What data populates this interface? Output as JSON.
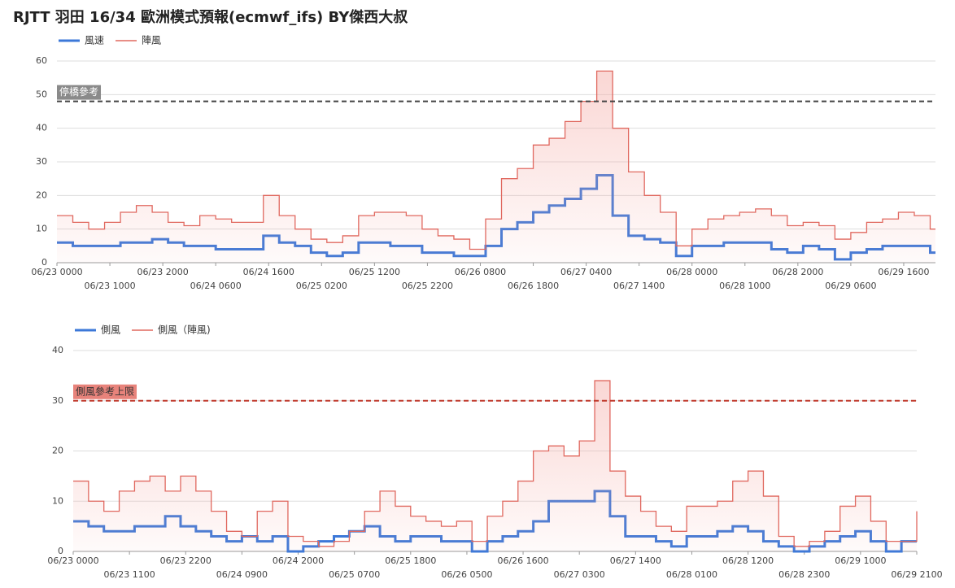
{
  "chart_data": [
    {
      "type": "step",
      "title": "RJTT 羽田 16/34 歐洲模式預報(ecmwf_ifs)  BY傑西大叔",
      "x": [
        "06/23 0000",
        "06/23 0300",
        "06/23 0600",
        "06/23 0900",
        "06/23 1200",
        "06/23 1500",
        "06/23 1800",
        "06/23 2100",
        "06/24 0000",
        "06/24 0300",
        "06/24 0600",
        "06/24 0900",
        "06/24 1200",
        "06/24 1500",
        "06/24 1800",
        "06/24 2100",
        "06/25 0000",
        "06/25 0300",
        "06/25 0600",
        "06/25 0900",
        "06/25 1200",
        "06/25 1500",
        "06/25 1800",
        "06/25 2100",
        "06/26 0000",
        "06/26 0300",
        "06/26 0600",
        "06/26 0900",
        "06/26 1200",
        "06/26 1500",
        "06/26 1800",
        "06/26 2100",
        "06/27 0000",
        "06/27 0300",
        "06/27 0600",
        "06/27 0900",
        "06/27 1200",
        "06/27 1500",
        "06/27 1800",
        "06/27 2100",
        "06/28 0000",
        "06/28 0300",
        "06/28 0600",
        "06/28 0900",
        "06/28 1200",
        "06/28 1500",
        "06/28 1800",
        "06/28 2100",
        "06/29 0000",
        "06/29 0300",
        "06/29 0600",
        "06/29 0900",
        "06/29 1200",
        "06/29 1500",
        "06/29 1800",
        "06/29 2100"
      ],
      "xlim": [
        "06/23 0000",
        "06/29 2200"
      ],
      "xticks": [
        "06/23 0000",
        "06/23 1000",
        "06/23 2000",
        "06/24 0600",
        "06/24 1600",
        "06/25 0200",
        "06/25 1200",
        "06/25 2200",
        "06/26 0800",
        "06/26 1800",
        "06/27 0400",
        "06/27 1400",
        "06/28 0000",
        "06/28 1000",
        "06/28 2000",
        "06/29 0600",
        "06/29 1600"
      ],
      "ylim": [
        0,
        60
      ],
      "yticks": [
        0,
        10,
        20,
        30,
        40,
        50,
        60
      ],
      "grid": true,
      "annotations": [
        {
          "text": "停橋參考",
          "value": 48,
          "color": "#444444"
        }
      ],
      "series": [
        {
          "name": "風速",
          "color": "#3c78d8",
          "values": [
            6,
            5,
            5,
            5,
            6,
            6,
            7,
            6,
            5,
            5,
            4,
            4,
            4,
            8,
            6,
            5,
            3,
            2,
            3,
            6,
            6,
            5,
            5,
            3,
            3,
            2,
            2,
            5,
            10,
            12,
            15,
            17,
            19,
            22,
            26,
            14,
            8,
            7,
            6,
            2,
            5,
            5,
            6,
            6,
            6,
            4,
            3,
            5,
            4,
            1,
            3,
            4,
            5,
            5,
            5,
            3
          ]
        },
        {
          "name": "陣風",
          "color": "#e0685f",
          "values": [
            14,
            12,
            10,
            12,
            15,
            17,
            15,
            12,
            11,
            14,
            13,
            12,
            12,
            20,
            14,
            10,
            7,
            6,
            8,
            14,
            15,
            15,
            14,
            10,
            8,
            7,
            4,
            13,
            25,
            28,
            35,
            37,
            42,
            48,
            57,
            40,
            27,
            20,
            15,
            5,
            10,
            13,
            14,
            15,
            16,
            14,
            11,
            12,
            11,
            7,
            9,
            12,
            13,
            15,
            14,
            10
          ]
        }
      ]
    },
    {
      "type": "step",
      "x": [
        "06/23 0000",
        "06/23 0300",
        "06/23 0600",
        "06/23 0900",
        "06/23 1200",
        "06/23 1500",
        "06/23 1800",
        "06/23 2100",
        "06/24 0000",
        "06/24 0300",
        "06/24 0600",
        "06/24 0900",
        "06/24 1200",
        "06/24 1500",
        "06/24 1800",
        "06/24 2100",
        "06/25 0000",
        "06/25 0300",
        "06/25 0600",
        "06/25 0900",
        "06/25 1200",
        "06/25 1500",
        "06/25 1800",
        "06/25 2100",
        "06/26 0000",
        "06/26 0300",
        "06/26 0600",
        "06/26 0900",
        "06/26 1200",
        "06/26 1500",
        "06/26 1800",
        "06/26 2100",
        "06/27 0000",
        "06/27 0300",
        "06/27 0600",
        "06/27 0900",
        "06/27 1200",
        "06/27 1500",
        "06/27 1800",
        "06/27 2100",
        "06/28 0000",
        "06/28 0300",
        "06/28 0600",
        "06/28 0900",
        "06/28 1200",
        "06/28 1500",
        "06/28 1800",
        "06/28 2100",
        "06/29 0000",
        "06/29 0300",
        "06/29 0600",
        "06/29 0900",
        "06/29 1200",
        "06/29 1500",
        "06/29 1800",
        "06/29 2100"
      ],
      "xlim": [
        "06/23 0000",
        "06/29 2100"
      ],
      "xticks": [
        "06/23 0000",
        "06/23 1100",
        "06/23 2200",
        "06/24 0900",
        "06/24 2000",
        "06/25 0700",
        "06/25 1800",
        "06/26 0500",
        "06/26 1600",
        "06/27 0300",
        "06/27 1400",
        "06/28 0100",
        "06/28 1200",
        "06/28 2300",
        "06/29 1000",
        "06/29 2100"
      ],
      "ylim": [
        0,
        40
      ],
      "yticks": [
        0,
        10,
        20,
        30,
        40
      ],
      "grid": true,
      "annotations": [
        {
          "text": "側風參考上限",
          "value": 30,
          "color": "#c0392b"
        }
      ],
      "series": [
        {
          "name": "側風",
          "color": "#3c78d8",
          "values": [
            6,
            5,
            4,
            4,
            5,
            5,
            7,
            5,
            4,
            3,
            2,
            3,
            2,
            3,
            0,
            1,
            2,
            3,
            4,
            5,
            3,
            2,
            3,
            3,
            2,
            2,
            0,
            2,
            3,
            4,
            6,
            10,
            10,
            10,
            12,
            7,
            3,
            3,
            2,
            1,
            3,
            3,
            4,
            5,
            4,
            2,
            1,
            0,
            1,
            2,
            3,
            4,
            2,
            0,
            2,
            2
          ]
        },
        {
          "name": "側風（陣風)",
          "color": "#e0685f",
          "values": [
            14,
            10,
            8,
            12,
            14,
            15,
            12,
            15,
            12,
            8,
            4,
            3,
            8,
            10,
            3,
            2,
            1,
            2,
            4,
            8,
            12,
            9,
            7,
            6,
            5,
            6,
            2,
            7,
            10,
            14,
            20,
            21,
            19,
            22,
            34,
            16,
            11,
            8,
            5,
            4,
            9,
            9,
            10,
            14,
            16,
            11,
            3,
            1,
            2,
            4,
            9,
            11,
            6,
            2,
            2,
            8
          ]
        }
      ]
    }
  ]
}
